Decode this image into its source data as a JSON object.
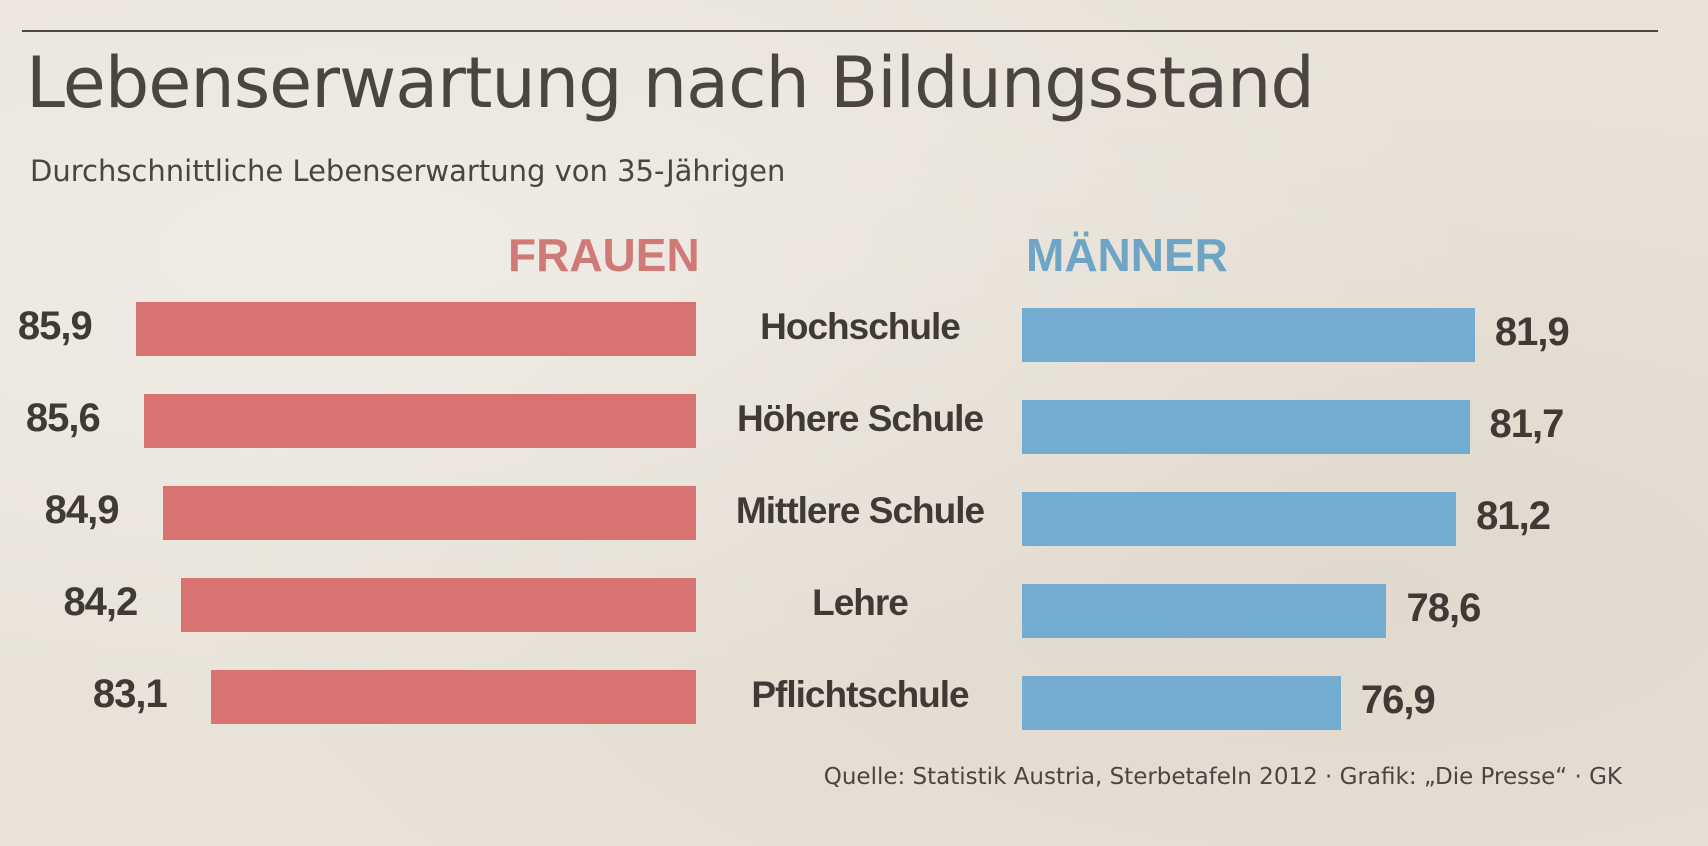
{
  "chart_data": {
    "type": "bar",
    "title": "Lebenserwartung nach Bildungsstand",
    "subtitle": "Durchschnittliche Lebenserwartung von 35-Jährigen",
    "categories": [
      "Hochschule",
      "Höhere Schule",
      "Mittlere Schule",
      "Lehre",
      "Pflichtschule"
    ],
    "series": [
      {
        "name": "FRAUEN",
        "color": "#d77472",
        "values": [
          85.9,
          85.6,
          84.9,
          84.2,
          83.1
        ],
        "labels": [
          "85,9",
          "85,6",
          "84,9",
          "84,2",
          "83,1"
        ]
      },
      {
        "name": "MÄNNER",
        "color": "#74acd0",
        "values": [
          81.9,
          81.7,
          81.2,
          78.6,
          76.9
        ],
        "labels": [
          "81,9",
          "81,7",
          "81,2",
          "78,6",
          "76,9"
        ]
      }
    ],
    "source": "Quelle: Statistik Austria, Sterbetafeln 2012 · Grafik: „Die Presse“ · GK"
  }
}
